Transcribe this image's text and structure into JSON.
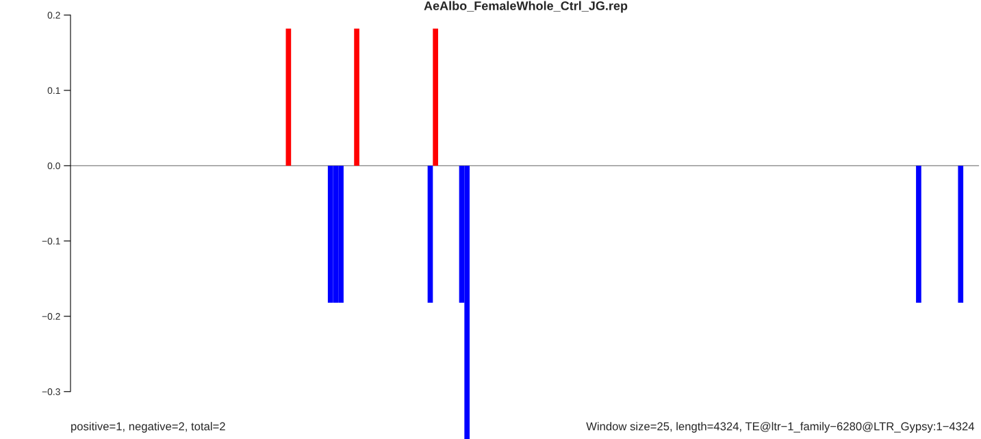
{
  "chart_data": {
    "type": "bar",
    "title": "AeAlbo_FemaleWhole_Ctrl_JG.rep",
    "categories": [
      null,
      null,
      null,
      null,
      null,
      null,
      null,
      null,
      null,
      null,
      null,
      null,
      null,
      null,
      null,
      null,
      null,
      null,
      null,
      null,
      null,
      null,
      null,
      null,
      null,
      null,
      null,
      null,
      null,
      null,
      null,
      null,
      null,
      null,
      null,
      null,
      null,
      null,
      null,
      null,
      null,
      null,
      null,
      null,
      null,
      null,
      null,
      null,
      null,
      null,
      null,
      null,
      null,
      null,
      null,
      null,
      null,
      null,
      null,
      null,
      null,
      null,
      null,
      null,
      null,
      null,
      null,
      null,
      null,
      null,
      null,
      null,
      null,
      null,
      null,
      null,
      null,
      null,
      null,
      null,
      null,
      null,
      null,
      null,
      null,
      null,
      null,
      null,
      null,
      null,
      null,
      null,
      null,
      null,
      null,
      null,
      null,
      null,
      null,
      null,
      null,
      null,
      null,
      null,
      null,
      null,
      null,
      null,
      null,
      null,
      null,
      null,
      null,
      null,
      null,
      null,
      null,
      null,
      null,
      null,
      null,
      null,
      null,
      null,
      null,
      null,
      null,
      null,
      null,
      null,
      null,
      null,
      null,
      null,
      null,
      null,
      null,
      null,
      null,
      null,
      null,
      null,
      null,
      null,
      null,
      null,
      null,
      null,
      null,
      null,
      null,
      null,
      null,
      null,
      null,
      null,
      null,
      null,
      null,
      null,
      null,
      null,
      null,
      null,
      null,
      null,
      null,
      null,
      null,
      null,
      null,
      null,
      null
    ],
    "series": [
      {
        "color": "#ff0000",
        "values": [
          null,
          null,
          null,
          null,
          null,
          null,
          null,
          null,
          null,
          null,
          null,
          null,
          null,
          null,
          null,
          null,
          null,
          null,
          null,
          null,
          null,
          null,
          null,
          null,
          null,
          null,
          null,
          null,
          null,
          null,
          null,
          null,
          null,
          null,
          null,
          null,
          null,
          null,
          null,
          null,
          null,
          0.182,
          null,
          null,
          null,
          null,
          null,
          null,
          null,
          null,
          null,
          null,
          null,
          null,
          0.182,
          null,
          null,
          null,
          null,
          null,
          null,
          null,
          null,
          null,
          null,
          null,
          null,
          null,
          null,
          0.182,
          null,
          null,
          null,
          null,
          null,
          null,
          null,
          null,
          null,
          null,
          null,
          null,
          null,
          null,
          null,
          null,
          null,
          null,
          null,
          null,
          null,
          null,
          null,
          null,
          null,
          null,
          null,
          null,
          null,
          null,
          null,
          null,
          null,
          null,
          null,
          null,
          null,
          null,
          null,
          null,
          null,
          null,
          null,
          null,
          null,
          null,
          null,
          null,
          null,
          null,
          null,
          null,
          null,
          null,
          null,
          null,
          null,
          null,
          null,
          null,
          null,
          null,
          null,
          null,
          null,
          null,
          null,
          null,
          null,
          null,
          null,
          null,
          null,
          null,
          null,
          null,
          null,
          null,
          null,
          null,
          null,
          null,
          null,
          null,
          null,
          null,
          null,
          null,
          null,
          null,
          null,
          null,
          null,
          null,
          null,
          null,
          null,
          null,
          null,
          null,
          null,
          null,
          null
        ]
      },
      {
        "color": "#0000ff",
        "values": [
          null,
          null,
          null,
          null,
          null,
          null,
          null,
          null,
          null,
          null,
          null,
          null,
          null,
          null,
          null,
          null,
          null,
          null,
          null,
          null,
          null,
          null,
          null,
          null,
          null,
          null,
          null,
          null,
          null,
          null,
          null,
          null,
          null,
          null,
          null,
          null,
          null,
          null,
          null,
          null,
          null,
          null,
          null,
          null,
          null,
          null,
          null,
          null,
          null,
          -0.182,
          -0.182,
          -0.182,
          null,
          null,
          null,
          null,
          null,
          null,
          null,
          null,
          null,
          null,
          null,
          null,
          null,
          null,
          null,
          null,
          -0.182,
          null,
          null,
          null,
          null,
          null,
          -0.182,
          -0.363,
          null,
          null,
          null,
          null,
          null,
          null,
          null,
          null,
          null,
          null,
          null,
          null,
          null,
          null,
          null,
          null,
          null,
          null,
          null,
          null,
          null,
          null,
          null,
          null,
          null,
          null,
          null,
          null,
          null,
          null,
          null,
          null,
          null,
          null,
          null,
          null,
          null,
          null,
          null,
          null,
          null,
          null,
          null,
          null,
          null,
          null,
          null,
          null,
          null,
          null,
          null,
          null,
          null,
          null,
          null,
          null,
          null,
          null,
          null,
          null,
          null,
          null,
          null,
          null,
          null,
          null,
          null,
          null,
          null,
          null,
          null,
          null,
          null,
          null,
          null,
          null,
          null,
          null,
          null,
          null,
          null,
          null,
          null,
          null,
          null,
          -0.182,
          null,
          null,
          null,
          null,
          null,
          null,
          null,
          -0.182,
          null,
          null,
          null
        ]
      }
    ],
    "ylim": [
      -0.363,
      0.2
    ],
    "yticks": [
      0.2,
      0.1,
      {
        "value": 0,
        "label": "0.0"
      },
      {
        "value": -0.1,
        "label": "−0.1"
      },
      {
        "value": -0.2,
        "label": "−0.2"
      },
      {
        "value": -0.3,
        "label": "−0.3"
      }
    ],
    "tick_labels": "y",
    "ref_lines": [
      {
        "axis": "y",
        "value": 0,
        "color": "#808080"
      }
    ],
    "annotations": [
      "positive=1, negative=2, total=2",
      "Window size=25, length=4324, TE@ltr−1_family−6280@LTR_Gypsy:1−4324"
    ]
  }
}
